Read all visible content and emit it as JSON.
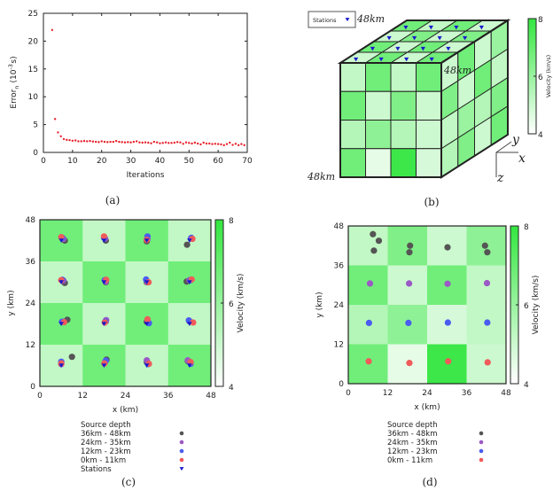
{
  "colors": {
    "low": "#ffffff",
    "high": "#33e63f",
    "error_points": "#e8202a",
    "station": "#1a1acc",
    "depth_36_48": "#555555",
    "depth_24_35": "#9b59c6",
    "depth_12_23": "#4a5cf0",
    "depth_0_11": "#f05a5a",
    "frame": "#222222"
  },
  "chart_data": [
    {
      "panel": "(a)",
      "type": "scatter",
      "xlabel": "Iterations",
      "ylabel": "Error_n (10^-3 s)",
      "ylabel_main": "Error",
      "ylabel_sub": "n",
      "ylabel_unit": "(10",
      "ylabel_exp": "-3",
      "ylabel_end": "s)",
      "xlim": [
        0,
        70
      ],
      "ylim": [
        0,
        25
      ],
      "xticks": [
        0,
        10,
        20,
        30,
        40,
        50,
        60,
        70
      ],
      "yticks": [
        0,
        5,
        10,
        15,
        20,
        25
      ],
      "points": [
        [
          3,
          22
        ],
        [
          4,
          6
        ],
        [
          5,
          3.6
        ],
        [
          6,
          2.9
        ],
        [
          7,
          2.4
        ],
        [
          8,
          2.25
        ],
        [
          9,
          2.2
        ],
        [
          10,
          2.1
        ],
        [
          11,
          2.15
        ],
        [
          12,
          2.0
        ],
        [
          13,
          2.0
        ],
        [
          14,
          2.05
        ],
        [
          15,
          2.0
        ],
        [
          16,
          2.05
        ],
        [
          17,
          1.95
        ],
        [
          18,
          1.9
        ],
        [
          19,
          1.85
        ],
        [
          20,
          2.0
        ],
        [
          21,
          1.9
        ],
        [
          22,
          1.85
        ],
        [
          23,
          1.9
        ],
        [
          24,
          1.9
        ],
        [
          25,
          2.05
        ],
        [
          26,
          1.9
        ],
        [
          27,
          1.85
        ],
        [
          28,
          1.8
        ],
        [
          29,
          1.85
        ],
        [
          30,
          1.8
        ],
        [
          31,
          1.9
        ],
        [
          32,
          2.0
        ],
        [
          33,
          1.8
        ],
        [
          34,
          1.75
        ],
        [
          35,
          1.8
        ],
        [
          36,
          1.75
        ],
        [
          37,
          1.65
        ],
        [
          38,
          1.9
        ],
        [
          39,
          1.8
        ],
        [
          40,
          1.65
        ],
        [
          41,
          1.7
        ],
        [
          42,
          1.8
        ],
        [
          43,
          1.7
        ],
        [
          44,
          1.7
        ],
        [
          45,
          1.75
        ],
        [
          46,
          1.85
        ],
        [
          47,
          1.8
        ],
        [
          48,
          1.55
        ],
        [
          49,
          1.8
        ],
        [
          50,
          1.7
        ],
        [
          51,
          1.6
        ],
        [
          52,
          1.75
        ],
        [
          53,
          1.6
        ],
        [
          54,
          1.45
        ],
        [
          55,
          1.75
        ],
        [
          56,
          1.6
        ],
        [
          57,
          1.6
        ],
        [
          58,
          1.5
        ],
        [
          59,
          1.55
        ],
        [
          60,
          1.5
        ],
        [
          61,
          1.45
        ],
        [
          62,
          1.3
        ],
        [
          63,
          1.5
        ],
        [
          64,
          1.75
        ],
        [
          65,
          1.35
        ],
        [
          66,
          1.55
        ],
        [
          67,
          1.3
        ],
        [
          68,
          1.5
        ],
        [
          69,
          1.3
        ]
      ]
    },
    {
      "panel": "(b)",
      "type": "heatmap",
      "legend_label": "Stations",
      "edge_labels": [
        "48km",
        "48km",
        "48km"
      ],
      "axis_labels": {
        "x": "x",
        "y": "y",
        "z": "z"
      },
      "colorbar": {
        "label": "Velocity  (km/s)",
        "range": [
          4,
          8
        ],
        "ticks": [
          4,
          6,
          8
        ]
      },
      "front_face": [
        [
          5.2,
          6.8,
          5.2,
          6.8
        ],
        [
          6.8,
          5.0,
          6.5,
          5.0
        ],
        [
          5.5,
          6.2,
          5.5,
          5.0
        ],
        [
          6.8,
          4.5,
          7.8,
          4.8
        ]
      ],
      "top_face": [
        [
          6.8,
          5.2,
          6.8,
          5.0
        ],
        [
          5.0,
          6.5,
          5.0,
          6.5
        ],
        [
          6.8,
          5.0,
          6.8,
          5.0
        ],
        [
          5.0,
          6.8,
          5.0,
          6.8
        ]
      ],
      "side_face": [
        [
          5.0,
          6.8,
          5.0,
          6.0
        ],
        [
          6.5,
          5.0,
          6.8,
          5.2
        ],
        [
          5.2,
          6.0,
          5.5,
          6.5
        ],
        [
          5.5,
          6.5,
          5.0,
          6.8
        ]
      ]
    },
    {
      "panel": "(c)",
      "type": "heatmap",
      "xlabel": "x (km)",
      "ylabel": "y (km)",
      "xlim": [
        0,
        48
      ],
      "ylim": [
        0,
        48
      ],
      "xticks": [
        0,
        12,
        24,
        36,
        48
      ],
      "yticks": [
        0,
        12,
        24,
        36,
        48
      ],
      "colorbar": {
        "label": "Velocity (km/s)",
        "range": [
          4,
          8
        ],
        "ticks": [
          4,
          6,
          8
        ]
      },
      "cells_top_to_bottom": [
        [
          6.8,
          5.2,
          6.8,
          5.2
        ],
        [
          5.2,
          6.8,
          5.2,
          6.8
        ],
        [
          6.8,
          5.2,
          6.8,
          5.2
        ],
        [
          5.2,
          6.8,
          5.2,
          6.8
        ]
      ],
      "legend_title": "Source depth",
      "series": [
        {
          "name": "36km - 48km",
          "color_key": "depth_36_48",
          "points": [
            [
              7,
              42
            ],
            [
              18.5,
              42
            ],
            [
              30,
              41.8
            ],
            [
              41.3,
              40.8
            ],
            [
              7,
              29.8
            ],
            [
              18.5,
              30
            ],
            [
              30,
              30
            ],
            [
              41.2,
              30.2
            ],
            [
              7.7,
              19.2
            ],
            [
              18.5,
              18.7
            ],
            [
              30,
              18.6
            ],
            [
              42,
              18.7
            ],
            [
              9,
              8.5
            ],
            [
              18.7,
              7.7
            ],
            [
              30,
              7
            ],
            [
              41.5,
              7.3
            ]
          ]
        },
        {
          "name": "24km - 35km",
          "color_key": "depth_24_35",
          "points": [
            [
              6.6,
              42.5
            ],
            [
              18.3,
              42.6
            ],
            [
              30.2,
              42.5
            ],
            [
              42.4,
              42.6
            ],
            [
              6.6,
              30.5
            ],
            [
              18.5,
              30.2
            ],
            [
              30.2,
              30
            ],
            [
              42,
              30.6
            ],
            [
              6.7,
              18.6
            ],
            [
              18.6,
              19.1
            ],
            [
              30.2,
              19
            ],
            [
              42,
              18.8
            ],
            [
              6,
              6.4
            ],
            [
              18.3,
              7
            ],
            [
              30,
              7.5
            ],
            [
              41.5,
              7.5
            ]
          ]
        },
        {
          "name": "12km - 23km",
          "color_key": "depth_12_23",
          "points": [
            [
              6.3,
              42.8
            ],
            [
              18,
              42.8
            ],
            [
              30.2,
              43.2
            ],
            [
              42.5,
              42.8
            ],
            [
              6.3,
              30.7
            ],
            [
              18.2,
              30.6
            ],
            [
              29.8,
              30.8
            ],
            [
              42.3,
              30.6
            ],
            [
              6.2,
              18.6
            ],
            [
              18.3,
              18.6
            ],
            [
              30.6,
              18.2
            ],
            [
              41.8,
              19
            ],
            [
              6,
              7.1
            ],
            [
              18.5,
              7.4
            ],
            [
              30.4,
              6.4
            ],
            [
              42.3,
              6.5
            ]
          ]
        },
        {
          "name": " 0km - 11km",
          "color_key": "depth_0_11",
          "points": [
            [
              6,
              43
            ],
            [
              18,
              43.2
            ],
            [
              30,
              42.2
            ],
            [
              42.8,
              42.5
            ],
            [
              6,
              30.6
            ],
            [
              18.6,
              30.7
            ],
            [
              30.5,
              30
            ],
            [
              42.6,
              30.8
            ],
            [
              6.8,
              18.5
            ],
            [
              18.2,
              18.4
            ],
            [
              30.2,
              19.3
            ],
            [
              43,
              18.4
            ],
            [
              6,
              6.6
            ],
            [
              18.1,
              6.6
            ],
            [
              30.6,
              6.5
            ],
            [
              42.3,
              7
            ]
          ]
        },
        {
          "name": "Stations",
          "color_key": "station",
          "points": [
            [
              6,
              42
            ],
            [
              18,
              42
            ],
            [
              30,
              42
            ],
            [
              42,
              42
            ],
            [
              6,
              30
            ],
            [
              18,
              30
            ],
            [
              30,
              30
            ],
            [
              42,
              30
            ],
            [
              6,
              18
            ],
            [
              18,
              18
            ],
            [
              30,
              18
            ],
            [
              42,
              18
            ],
            [
              6,
              6
            ],
            [
              18,
              6
            ],
            [
              30,
              6
            ],
            [
              42,
              6
            ]
          ]
        }
      ]
    },
    {
      "panel": "(d)",
      "type": "heatmap",
      "xlabel": "x (km)",
      "ylabel": "y (km)",
      "xlim": [
        0,
        48
      ],
      "ylim": [
        48,
        0
      ],
      "xticks": [
        0,
        12,
        24,
        36,
        48
      ],
      "yticks": [
        0,
        12,
        24,
        36,
        48
      ],
      "colorbar": {
        "label": "Velocity (km/s)",
        "range": [
          4,
          8
        ],
        "ticks": [
          4,
          6,
          8
        ]
      },
      "cells_top_to_bottom": [
        [
          5.2,
          6.5,
          5.0,
          6.2
        ],
        [
          6.8,
          5.0,
          6.8,
          5.2
        ],
        [
          5.5,
          6.2,
          4.8,
          5.2
        ],
        [
          6.8,
          4.5,
          7.8,
          5.0
        ]
      ],
      "legend_title": "Source depth",
      "series": [
        {
          "name": "36km - 48km",
          "color_key": "depth_36_48",
          "points": [
            [
              7.8,
              40.5
            ],
            [
              9.3,
              43.5
            ],
            [
              7.5,
              45.5
            ],
            [
              18.6,
              40
            ],
            [
              18.8,
              42
            ],
            [
              30.2,
              41.5
            ],
            [
              42.3,
              40
            ],
            [
              41.6,
              42
            ]
          ]
        },
        {
          "name": "24km - 35km",
          "color_key": "depth_24_35",
          "points": [
            [
              6.6,
              30.5
            ],
            [
              18.5,
              30.5
            ],
            [
              30.2,
              30.4
            ],
            [
              42.2,
              30.6
            ]
          ]
        },
        {
          "name": "12km - 23km",
          "color_key": "depth_12_23",
          "points": [
            [
              6.3,
              18.5
            ],
            [
              18.3,
              18.5
            ],
            [
              30.3,
              18.6
            ],
            [
              42.3,
              18.6
            ]
          ]
        },
        {
          "name": " 0km - 11km",
          "color_key": "depth_0_11",
          "points": [
            [
              6.2,
              6.8
            ],
            [
              18.6,
              6.3
            ],
            [
              30.4,
              6.8
            ],
            [
              42.4,
              6.5
            ]
          ]
        }
      ]
    }
  ],
  "captions": [
    "(a)",
    "(b)",
    "(c)",
    "(d)"
  ]
}
